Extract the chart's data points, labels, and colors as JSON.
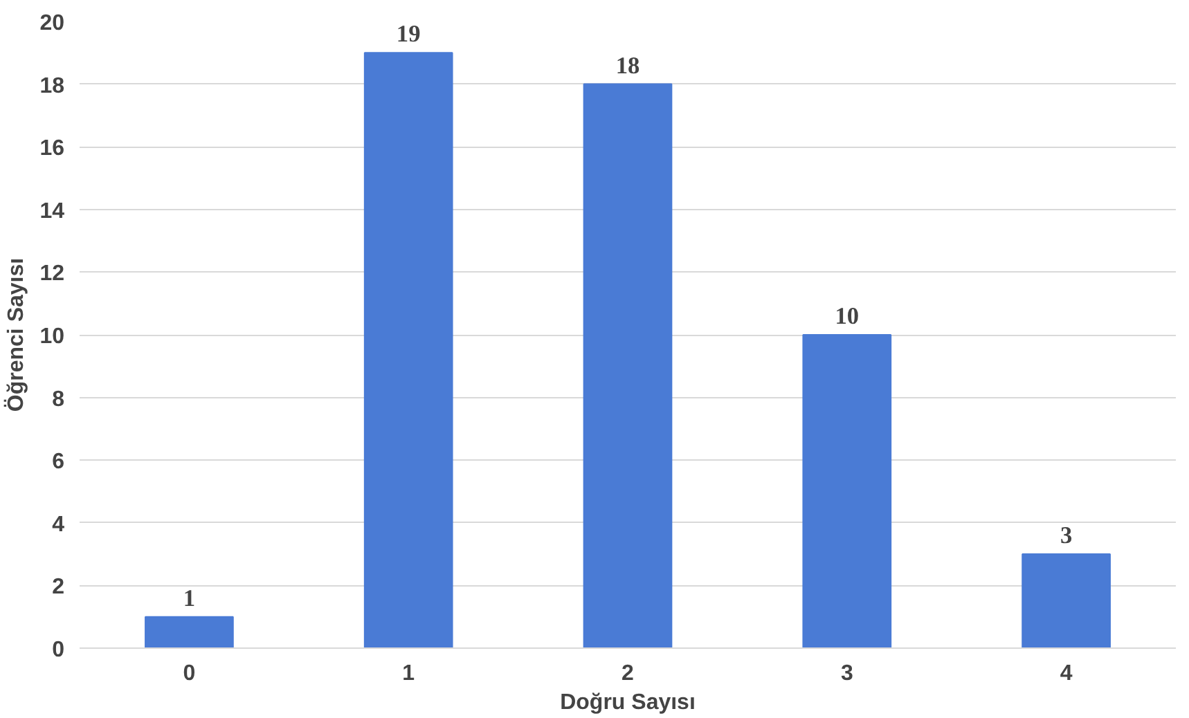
{
  "chart_data": {
    "type": "bar",
    "xlabel": "Doğru Sayısı",
    "ylabel": "Öğrenci Sayısı",
    "categories": [
      "0",
      "1",
      "2",
      "3",
      "4"
    ],
    "values": [
      1,
      19,
      18,
      10,
      3
    ],
    "color": "#4a7bd5",
    "ylim": [
      0,
      20
    ],
    "yticks": [
      0,
      2,
      4,
      6,
      8,
      10,
      12,
      14,
      16,
      18,
      20
    ],
    "grid": "y",
    "data_labels": true
  }
}
